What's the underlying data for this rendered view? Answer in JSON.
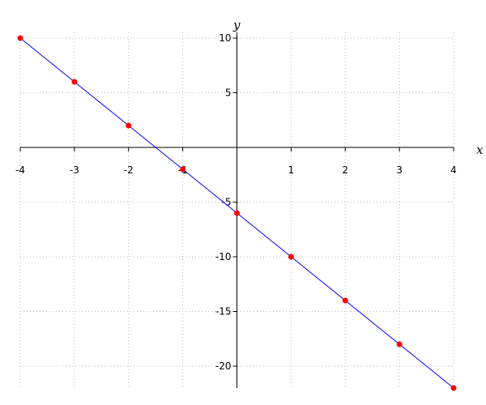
{
  "chart_data": {
    "type": "line",
    "x_label": "x",
    "y_label": "y",
    "x": [
      -4,
      -3,
      -2,
      -1,
      0,
      1,
      2,
      3,
      4
    ],
    "series": [
      {
        "color": "#0000ff",
        "marker_color": "#ff0000",
        "values": [
          10,
          6,
          2,
          -2,
          -6,
          -10,
          -14,
          -18,
          -22
        ]
      }
    ],
    "xlim": [
      -4,
      4
    ],
    "ylim": [
      -22,
      10
    ],
    "xticks": [
      -4,
      -3,
      -2,
      -1,
      1,
      2,
      3,
      4
    ],
    "yticks": [
      10,
      5,
      -5,
      -10,
      -15,
      -20
    ],
    "grid": true
  }
}
